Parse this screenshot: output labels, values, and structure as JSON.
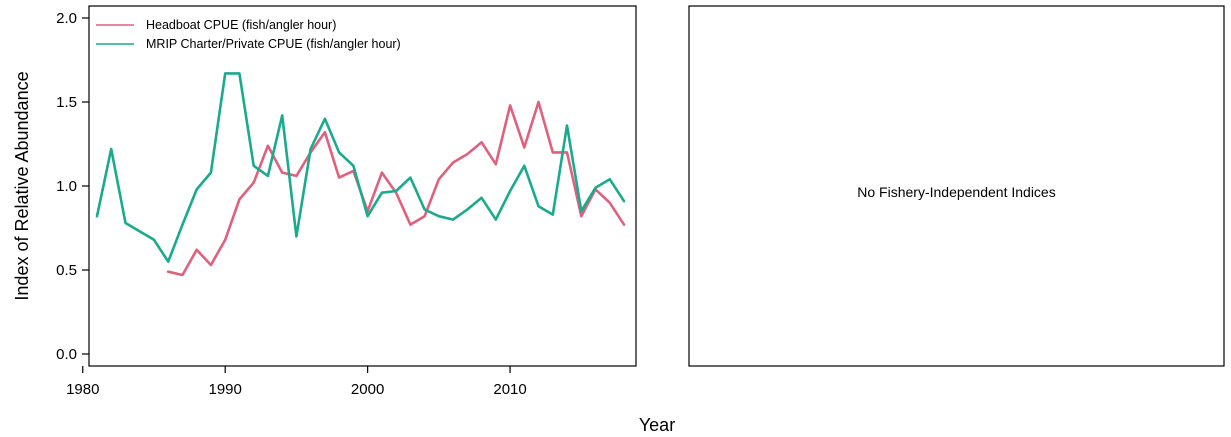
{
  "chart_data": [
    {
      "type": "line",
      "xlabel": "Year",
      "ylabel": "Index of Relative Abundance",
      "xlim": [
        1980,
        2018
      ],
      "ylim": [
        0,
        2
      ],
      "xticks": [
        1980,
        1990,
        2000,
        2010
      ],
      "yticks": [
        "0.0",
        "0.5",
        "1.0",
        "1.5",
        "2.0"
      ],
      "legend_position": "top-left",
      "series": [
        {
          "name": "Headboat CPUE (fish/angler hour)",
          "color": "#e0607e",
          "x": [
            1986,
            1987,
            1988,
            1989,
            1990,
            1991,
            1992,
            1993,
            1994,
            1995,
            1996,
            1997,
            1998,
            1999,
            2000,
            2001,
            2002,
            2003,
            2004,
            2005,
            2006,
            2007,
            2008,
            2009,
            2010,
            2011,
            2012,
            2013,
            2014,
            2015,
            2016,
            2017,
            2018
          ],
          "values": [
            0.49,
            0.47,
            0.62,
            0.53,
            0.68,
            0.92,
            1.02,
            1.24,
            1.08,
            1.06,
            1.2,
            1.32,
            1.05,
            1.09,
            0.85,
            1.08,
            0.96,
            0.77,
            0.82,
            1.04,
            1.14,
            1.19,
            1.26,
            1.13,
            1.48,
            1.23,
            1.5,
            1.2,
            1.2,
            0.82,
            0.98,
            0.9,
            0.77
          ]
        },
        {
          "name": "MRIP Charter/Private CPUE (fish/angler hour)",
          "color": "#1aaa8e",
          "x": [
            1981,
            1982,
            1983,
            1984,
            1985,
            1986,
            1987,
            1988,
            1989,
            1990,
            1991,
            1992,
            1993,
            1994,
            1995,
            1996,
            1997,
            1998,
            1999,
            2000,
            2001,
            2002,
            2003,
            2004,
            2005,
            2006,
            2007,
            2008,
            2009,
            2010,
            2011,
            2012,
            2013,
            2014,
            2015,
            2016,
            2017,
            2018
          ],
          "values": [
            0.82,
            1.22,
            0.78,
            0.73,
            0.68,
            0.55,
            0.77,
            0.98,
            1.08,
            1.67,
            1.67,
            1.12,
            1.06,
            1.42,
            0.7,
            1.22,
            1.4,
            1.2,
            1.12,
            0.82,
            0.96,
            0.97,
            1.05,
            0.86,
            0.82,
            0.8,
            0.86,
            0.93,
            0.8,
            0.97,
            1.12,
            0.88,
            0.83,
            1.36,
            0.85,
            0.99,
            1.04,
            0.91
          ]
        }
      ]
    },
    {
      "type": "line",
      "annotation": "No Fishery-Independent Indices",
      "series": []
    }
  ]
}
